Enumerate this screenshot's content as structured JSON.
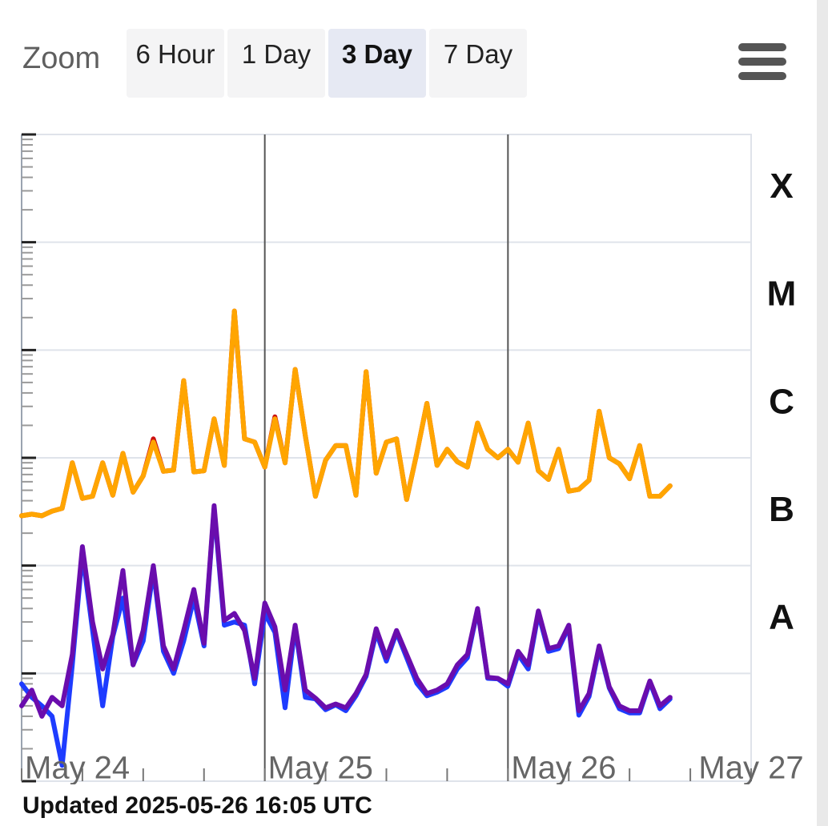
{
  "zoom": {
    "label": "Zoom",
    "options": [
      "6 Hour",
      "1 Day",
      "3 Day",
      "7 Day"
    ],
    "selected": "3 Day"
  },
  "menu": {
    "icon": "hamburger-icon"
  },
  "updated_text": "Updated 2025-05-26 16:05 UTC",
  "colors": {
    "series_red": "#cc1111",
    "series_orange": "#ffa500",
    "series_blue": "#1e3cff",
    "series_purple": "#6a0dad",
    "grid": "#dfe3ea",
    "day_line": "#555555"
  },
  "chart_data": {
    "type": "line",
    "y_scale": "log",
    "ylim": [
      1e-09,
      0.001
    ],
    "x_range": [
      "2025-05-24 00:00",
      "2025-05-27 00:00"
    ],
    "x_ticks": [
      "May 24",
      "May 25",
      "May 26",
      "May 27"
    ],
    "class_labels": [
      {
        "label": "X",
        "value": 0.000316
      },
      {
        "label": "M",
        "value": 3.16e-05
      },
      {
        "label": "C",
        "value": 3.16e-06
      },
      {
        "label": "B",
        "value": 3.16e-07
      },
      {
        "label": "A",
        "value": 3.16e-08
      }
    ],
    "grid": true,
    "x": [
      "2025-05-24 00:00",
      "2025-05-24 01:00",
      "2025-05-24 02:00",
      "2025-05-24 03:00",
      "2025-05-24 04:00",
      "2025-05-24 05:00",
      "2025-05-24 06:00",
      "2025-05-24 07:00",
      "2025-05-24 08:00",
      "2025-05-24 09:00",
      "2025-05-24 10:00",
      "2025-05-24 11:00",
      "2025-05-24 12:00",
      "2025-05-24 13:00",
      "2025-05-24 14:00",
      "2025-05-24 15:00",
      "2025-05-24 16:00",
      "2025-05-24 17:00",
      "2025-05-24 18:00",
      "2025-05-24 19:00",
      "2025-05-24 20:00",
      "2025-05-24 21:00",
      "2025-05-24 22:00",
      "2025-05-24 23:00",
      "2025-05-25 00:00",
      "2025-05-25 01:00",
      "2025-05-25 02:00",
      "2025-05-25 03:00",
      "2025-05-25 04:00",
      "2025-05-25 05:00",
      "2025-05-25 06:00",
      "2025-05-25 07:00",
      "2025-05-25 08:00",
      "2025-05-25 09:00",
      "2025-05-25 10:00",
      "2025-05-25 11:00",
      "2025-05-25 12:00",
      "2025-05-25 13:00",
      "2025-05-25 14:00",
      "2025-05-25 15:00",
      "2025-05-25 16:00",
      "2025-05-25 17:00",
      "2025-05-25 18:00",
      "2025-05-25 19:00",
      "2025-05-25 20:00",
      "2025-05-25 21:00",
      "2025-05-25 22:00",
      "2025-05-25 23:00",
      "2025-05-26 00:00",
      "2025-05-26 01:00",
      "2025-05-26 02:00",
      "2025-05-26 03:00",
      "2025-05-26 04:00",
      "2025-05-26 05:00",
      "2025-05-26 06:00",
      "2025-05-26 07:00",
      "2025-05-26 08:00",
      "2025-05-26 09:00",
      "2025-05-26 10:00",
      "2025-05-26 11:00",
      "2025-05-26 12:00",
      "2025-05-26 13:00",
      "2025-05-26 14:00",
      "2025-05-26 15:00",
      "2025-05-26 16:00"
    ],
    "series": [
      {
        "color": "#cc1111",
        "values": [
          2.9e-07,
          3e-07,
          2.9e-07,
          3.2e-07,
          3.4e-07,
          9e-07,
          4.2e-07,
          4.4e-07,
          9e-07,
          4.5e-07,
          1.1e-06,
          4.8e-07,
          6.8e-07,
          1.5e-06,
          7.5e-07,
          7.7e-07,
          5.2e-06,
          7.4e-07,
          7.6e-07,
          2.3e-06,
          8.5e-07,
          2.3e-05,
          1.5e-06,
          1.4e-06,
          8.2e-07,
          2.4e-06,
          9e-07,
          6.6e-06,
          1.6e-06,
          4.4e-07,
          9.5e-07,
          1.3e-06,
          1.3e-06,
          4.5e-07,
          6.3e-06,
          7.2e-07,
          1.4e-06,
          1.5e-06,
          4.1e-07,
          1.1e-06,
          3.2e-06,
          8.5e-07,
          1.2e-06,
          9.2e-07,
          8.2e-07,
          2.1e-06,
          1.2e-06,
          1e-06,
          1.2e-06,
          9.1e-07,
          2.1e-06,
          7.6e-07,
          6.3e-07,
          1.2e-06,
          4.9e-07,
          5.1e-07,
          6.2e-07,
          2.7e-06,
          1e-06,
          8.8e-07,
          6.4e-07,
          1.3e-06,
          4.4e-07,
          4.4e-07,
          5.5e-07
        ]
      },
      {
        "color": "#ffa500",
        "values": [
          2.9e-07,
          3e-07,
          2.9e-07,
          3.2e-07,
          3.4e-07,
          9e-07,
          4.2e-07,
          4.4e-07,
          9e-07,
          4.5e-07,
          1.1e-06,
          4.8e-07,
          6.8e-07,
          1.4e-06,
          7.5e-07,
          7.7e-07,
          5.2e-06,
          7.4e-07,
          7.6e-07,
          2.3e-06,
          8.5e-07,
          2.3e-05,
          1.5e-06,
          1.4e-06,
          8.2e-07,
          2.3e-06,
          9e-07,
          6.6e-06,
          1.6e-06,
          4.4e-07,
          9.5e-07,
          1.3e-06,
          1.3e-06,
          4.5e-07,
          6.3e-06,
          7.2e-07,
          1.4e-06,
          1.5e-06,
          4.1e-07,
          1.1e-06,
          3.2e-06,
          8.5e-07,
          1.2e-06,
          9.2e-07,
          8.2e-07,
          2.1e-06,
          1.2e-06,
          1e-06,
          1.2e-06,
          9.1e-07,
          2.1e-06,
          7.6e-07,
          6.3e-07,
          1.2e-06,
          4.9e-07,
          5.1e-07,
          6.2e-07,
          2.7e-06,
          1e-06,
          8.8e-07,
          6.4e-07,
          1.3e-06,
          4.4e-07,
          4.4e-07,
          5.5e-07
        ]
      },
      {
        "color": "#1e3cff",
        "values": [
          8e-09,
          6e-09,
          5e-09,
          4e-09,
          1.4e-09,
          1.2e-08,
          1.3e-07,
          2.5e-08,
          5e-09,
          2.2e-08,
          5e-08,
          1.2e-08,
          2e-08,
          9e-08,
          1.6e-08,
          1e-08,
          2e-08,
          5e-08,
          1.8e-08,
          3.4e-07,
          2.8e-08,
          3e-08,
          2.8e-08,
          8e-09,
          3.6e-08,
          2.4e-08,
          4.8e-09,
          2.7e-08,
          6e-09,
          5.8e-09,
          4.6e-09,
          5.1e-09,
          4.5e-09,
          6.2e-09,
          9.4e-09,
          2.4e-08,
          1.3e-08,
          2.4e-08,
          1.4e-08,
          8.1e-09,
          6.2e-09,
          6.7e-09,
          7.5e-09,
          1.1e-08,
          1.4e-08,
          3.9e-08,
          9e-09,
          8.9e-09,
          7.6e-09,
          1.5e-08,
          1.1e-08,
          3.6e-08,
          1.6e-08,
          1.7e-08,
          2.7e-08,
          4.1e-09,
          6.1e-09,
          1.7e-08,
          7.3e-09,
          4.7e-09,
          4.3e-09,
          4.3e-09,
          8.3e-09,
          4.7e-09,
          5.8e-09
        ]
      },
      {
        "color": "#6a0dad",
        "values": [
          5e-09,
          7e-09,
          4e-09,
          6e-09,
          5e-09,
          1.5e-08,
          1.5e-07,
          3e-08,
          1.1e-08,
          2.3e-08,
          9e-08,
          1.2e-08,
          2.5e-08,
          1e-07,
          1.8e-08,
          1.1e-08,
          2.5e-08,
          6e-08,
          1.9e-08,
          3.6e-07,
          3.1e-08,
          3.6e-08,
          2.5e-08,
          9e-09,
          4.5e-08,
          2.7e-08,
          7e-09,
          2.8e-08,
          7e-09,
          5.9e-09,
          4.8e-09,
          5.2e-09,
          4.8e-09,
          6.5e-09,
          9.8e-09,
          2.6e-08,
          1.4e-08,
          2.5e-08,
          1.5e-08,
          9e-09,
          6.5e-09,
          7e-09,
          8e-09,
          1.2e-08,
          1.5e-08,
          4e-08,
          9.2e-09,
          9e-09,
          8e-09,
          1.6e-08,
          1.2e-08,
          3.8e-08,
          1.7e-08,
          1.8e-08,
          2.8e-08,
          4.5e-09,
          6.5e-09,
          1.8e-08,
          7.5e-09,
          5e-09,
          4.5e-09,
          4.5e-09,
          8.5e-09,
          5e-09,
          6e-09
        ]
      }
    ]
  }
}
